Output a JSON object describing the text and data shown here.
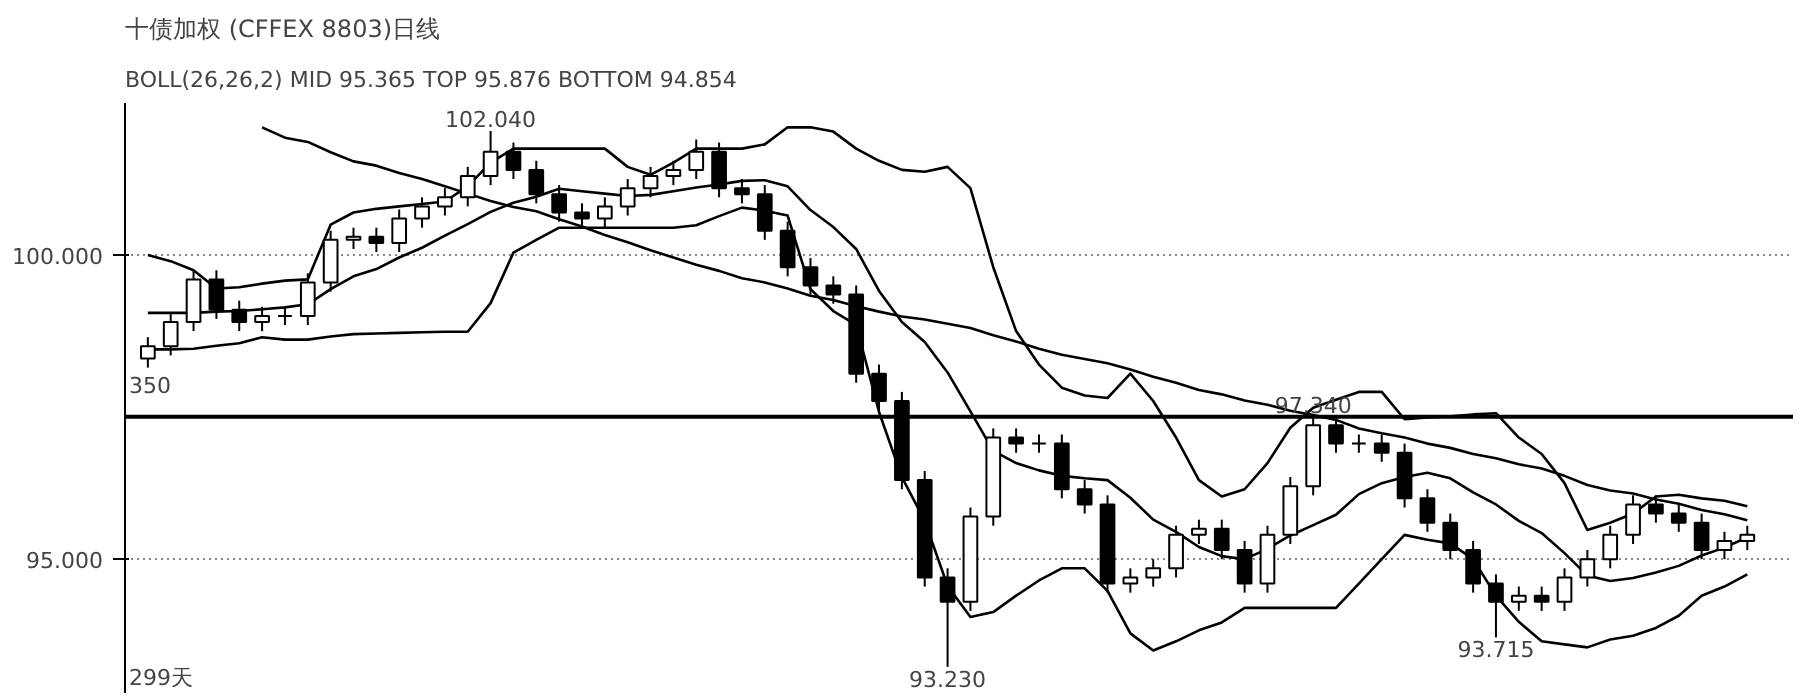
{
  "chart_data": {
    "type": "candlestick",
    "title": "十债加权 (CFFEX 8803)日线",
    "subtitle": "BOLL(26,26,2)  MID  95.365   TOP  95.876   BOTTOM  94.854",
    "categories": [
      null,
      null,
      null,
      null,
      null,
      null,
      null,
      null,
      null,
      null,
      null,
      null,
      null,
      null,
      null,
      null,
      null,
      null,
      null,
      null,
      null,
      null,
      null,
      null,
      null,
      null,
      null,
      null,
      null,
      null,
      null,
      null,
      null,
      null,
      null,
      null,
      null,
      null,
      null,
      null,
      null,
      null,
      null,
      null,
      null,
      null,
      null,
      null,
      null,
      null,
      null,
      null,
      null,
      null,
      null,
      null,
      null,
      null,
      null,
      null,
      null,
      null,
      null,
      null,
      null,
      null,
      null,
      null,
      null,
      null,
      null
    ],
    "ohlc": [
      [
        98.3,
        98.65,
        98.15,
        98.5
      ],
      [
        98.5,
        99.05,
        98.35,
        98.9
      ],
      [
        98.9,
        99.75,
        98.75,
        99.6
      ],
      [
        99.6,
        99.75,
        98.95,
        99.1
      ],
      [
        99.1,
        99.25,
        98.75,
        98.9
      ],
      [
        98.9,
        99.15,
        98.75,
        99.0
      ],
      [
        99.0,
        99.15,
        98.85,
        99.0
      ],
      [
        99.0,
        99.7,
        98.85,
        99.55
      ],
      [
        99.55,
        100.4,
        99.4,
        100.25
      ],
      [
        100.25,
        100.45,
        100.1,
        100.3
      ],
      [
        100.3,
        100.45,
        100.05,
        100.2
      ],
      [
        100.2,
        100.75,
        100.05,
        100.6
      ],
      [
        100.6,
        100.95,
        100.45,
        100.8
      ],
      [
        100.8,
        101.1,
        100.65,
        100.95
      ],
      [
        100.95,
        101.45,
        100.8,
        101.3
      ],
      [
        101.3,
        102.04,
        101.15,
        101.7
      ],
      [
        101.7,
        101.85,
        101.25,
        101.4
      ],
      [
        101.4,
        101.55,
        100.85,
        101.0
      ],
      [
        101.0,
        101.15,
        100.55,
        100.7
      ],
      [
        100.7,
        100.85,
        100.45,
        100.6
      ],
      [
        100.6,
        100.95,
        100.45,
        100.8
      ],
      [
        100.8,
        101.25,
        100.65,
        101.1
      ],
      [
        101.1,
        101.45,
        100.95,
        101.3
      ],
      [
        101.3,
        101.55,
        101.15,
        101.4
      ],
      [
        101.4,
        101.9,
        101.25,
        101.7
      ],
      [
        101.7,
        101.85,
        100.95,
        101.1
      ],
      [
        101.1,
        101.25,
        100.85,
        101.0
      ],
      [
        101.0,
        101.15,
        100.25,
        100.4
      ],
      [
        100.4,
        100.55,
        99.65,
        99.8
      ],
      [
        99.8,
        99.95,
        99.35,
        99.5
      ],
      [
        99.5,
        99.65,
        99.2,
        99.35
      ],
      [
        99.35,
        99.5,
        97.9,
        98.05
      ],
      [
        98.05,
        98.2,
        97.45,
        97.6
      ],
      [
        97.6,
        97.75,
        96.15,
        96.3
      ],
      [
        96.3,
        96.45,
        94.55,
        94.7
      ],
      [
        94.7,
        94.85,
        93.23,
        94.3
      ],
      [
        94.3,
        95.85,
        94.15,
        95.7
      ],
      [
        95.7,
        97.15,
        95.55,
        97.0
      ],
      [
        97.0,
        97.15,
        96.75,
        96.9
      ],
      [
        96.9,
        97.05,
        96.75,
        96.9
      ],
      [
        96.9,
        97.05,
        96.0,
        96.15
      ],
      [
        96.15,
        96.3,
        95.75,
        95.9
      ],
      [
        95.9,
        96.05,
        94.45,
        94.6
      ],
      [
        94.6,
        94.85,
        94.45,
        94.7
      ],
      [
        94.7,
        95.0,
        94.55,
        94.85
      ],
      [
        94.85,
        95.55,
        94.7,
        95.4
      ],
      [
        95.4,
        95.65,
        95.25,
        95.5
      ],
      [
        95.5,
        95.65,
        95.0,
        95.15
      ],
      [
        95.15,
        95.3,
        94.45,
        94.6
      ],
      [
        94.6,
        95.55,
        94.45,
        95.4
      ],
      [
        95.4,
        96.35,
        95.25,
        96.2
      ],
      [
        96.2,
        97.34,
        96.05,
        97.2
      ],
      [
        97.2,
        97.35,
        96.75,
        96.9
      ],
      [
        96.9,
        97.05,
        96.75,
        96.9
      ],
      [
        96.9,
        97.05,
        96.6,
        96.75
      ],
      [
        96.75,
        96.9,
        95.85,
        96.0
      ],
      [
        96.0,
        96.15,
        95.45,
        95.6
      ],
      [
        95.6,
        95.75,
        95.0,
        95.15
      ],
      [
        95.15,
        95.3,
        94.45,
        94.6
      ],
      [
        94.6,
        94.75,
        93.715,
        94.3
      ],
      [
        94.3,
        94.55,
        94.15,
        94.4
      ],
      [
        94.4,
        94.55,
        94.15,
        94.3
      ],
      [
        94.3,
        94.85,
        94.15,
        94.7
      ],
      [
        94.7,
        95.15,
        94.55,
        95.0
      ],
      [
        95.0,
        95.55,
        94.85,
        95.4
      ],
      [
        95.4,
        96.05,
        95.25,
        95.9
      ],
      [
        95.9,
        96.05,
        95.6,
        95.75
      ],
      [
        95.75,
        95.9,
        95.45,
        95.6
      ],
      [
        95.6,
        95.75,
        95.0,
        95.15
      ],
      [
        95.15,
        95.45,
        95.0,
        95.3
      ],
      [
        95.3,
        95.55,
        95.15,
        95.4
      ]
    ],
    "color": "#000000",
    "series": [
      {
        "type": "line",
        "color": "#000000",
        "values": [
          100.0,
          99.9,
          99.75,
          99.45,
          99.47,
          99.53,
          99.58,
          99.6,
          100.5,
          100.7,
          100.76,
          100.8,
          100.84,
          100.88,
          101.13,
          101.52,
          101.75,
          101.75,
          101.75,
          101.75,
          101.75,
          101.45,
          101.32,
          101.52,
          101.75,
          101.75,
          101.75,
          101.82,
          102.1,
          102.1,
          102.03,
          101.75,
          101.55,
          101.4,
          101.37,
          101.45,
          101.1,
          99.8,
          98.75,
          98.2,
          97.82,
          97.69,
          97.65,
          98.05,
          97.6,
          97.0,
          96.3,
          96.03,
          96.15,
          96.58,
          97.16,
          97.49,
          97.62,
          97.75,
          97.75,
          97.3,
          97.33,
          97.35,
          97.38,
          97.4,
          97.0,
          96.73,
          96.25,
          95.48,
          95.6,
          95.75,
          96.03,
          96.06,
          96.0,
          95.96,
          95.87
        ]
      },
      {
        "type": "line",
        "color": "#000000",
        "values": [
          99.05,
          99.05,
          99.05,
          99.07,
          99.08,
          99.11,
          99.14,
          99.19,
          99.44,
          99.65,
          99.77,
          99.96,
          100.12,
          100.32,
          100.51,
          100.71,
          100.86,
          100.96,
          101.09,
          101.05,
          101.01,
          100.97,
          100.99,
          101.05,
          101.11,
          101.16,
          101.22,
          101.23,
          101.13,
          100.74,
          100.46,
          100.1,
          99.41,
          98.9,
          98.57,
          98.07,
          97.43,
          96.78,
          96.58,
          96.46,
          96.37,
          96.33,
          96.3,
          96.01,
          95.65,
          95.45,
          95.2,
          95.05,
          95.0,
          95.17,
          95.39,
          95.56,
          95.73,
          96.07,
          96.25,
          96.35,
          96.42,
          96.33,
          96.1,
          95.9,
          95.63,
          95.43,
          95.1,
          94.73,
          94.64,
          94.69,
          94.78,
          94.89,
          95.06,
          95.19,
          95.36
        ]
      },
      {
        "type": "line",
        "color": "#000000",
        "values": [
          98.45,
          98.45,
          98.46,
          98.51,
          98.55,
          98.65,
          98.61,
          98.61,
          98.66,
          98.7,
          98.71,
          98.72,
          98.73,
          98.74,
          98.74,
          99.21,
          100.04,
          100.25,
          100.45,
          100.45,
          100.45,
          100.45,
          100.45,
          100.45,
          100.49,
          100.64,
          100.78,
          100.73,
          100.65,
          99.44,
          99.08,
          98.85,
          97.42,
          96.35,
          95.63,
          94.56,
          94.05,
          94.13,
          94.4,
          94.65,
          94.85,
          94.85,
          94.48,
          93.78,
          93.5,
          93.65,
          93.83,
          93.96,
          94.2,
          94.2,
          94.2,
          94.2,
          94.2,
          94.6,
          95.0,
          95.4,
          95.32,
          95.26,
          95.0,
          94.4,
          93.97,
          93.65,
          93.6,
          93.55,
          93.68,
          93.74,
          93.87,
          94.07,
          94.4,
          94.55,
          94.75
        ]
      },
      {
        "type": "line",
        "color": "#000000",
        "values": [
          null,
          null,
          null,
          null,
          null,
          102.1,
          101.93,
          101.86,
          101.69,
          101.54,
          101.47,
          101.35,
          101.25,
          101.13,
          101.01,
          100.89,
          100.79,
          100.72,
          100.59,
          100.47,
          100.33,
          100.21,
          100.08,
          99.96,
          99.84,
          99.74,
          99.62,
          99.55,
          99.45,
          99.33,
          99.26,
          99.16,
          99.07,
          98.99,
          98.94,
          98.87,
          98.8,
          98.68,
          98.58,
          98.46,
          98.36,
          98.29,
          98.22,
          98.12,
          98.0,
          97.9,
          97.78,
          97.71,
          97.61,
          97.54,
          97.44,
          97.37,
          97.29,
          97.15,
          97.07,
          97.0,
          96.9,
          96.83,
          96.73,
          96.66,
          96.56,
          96.49,
          96.37,
          96.22,
          96.13,
          96.08,
          95.98,
          95.91,
          95.81,
          95.74,
          95.64
        ]
      }
    ],
    "ref_lines": [
      {
        "axis": "y",
        "value": 97.34,
        "color": "#000000"
      }
    ],
    "annotations": [
      {
        "text": "102.040",
        "y": 102.04
      },
      {
        "text": "93.230",
        "y": 93.23
      },
      {
        "text": "97.340",
        "y": 97.34
      },
      {
        "text": "93.715",
        "y": 93.715
      },
      "350",
      "299天"
    ],
    "ylim": [
      92.8,
      102.5
    ],
    "yticks": [
      {
        "value": 95,
        "label": "95.000"
      },
      {
        "value": 100,
        "label": "100.000"
      }
    ],
    "tick_labels": "y",
    "grid": "y"
  }
}
